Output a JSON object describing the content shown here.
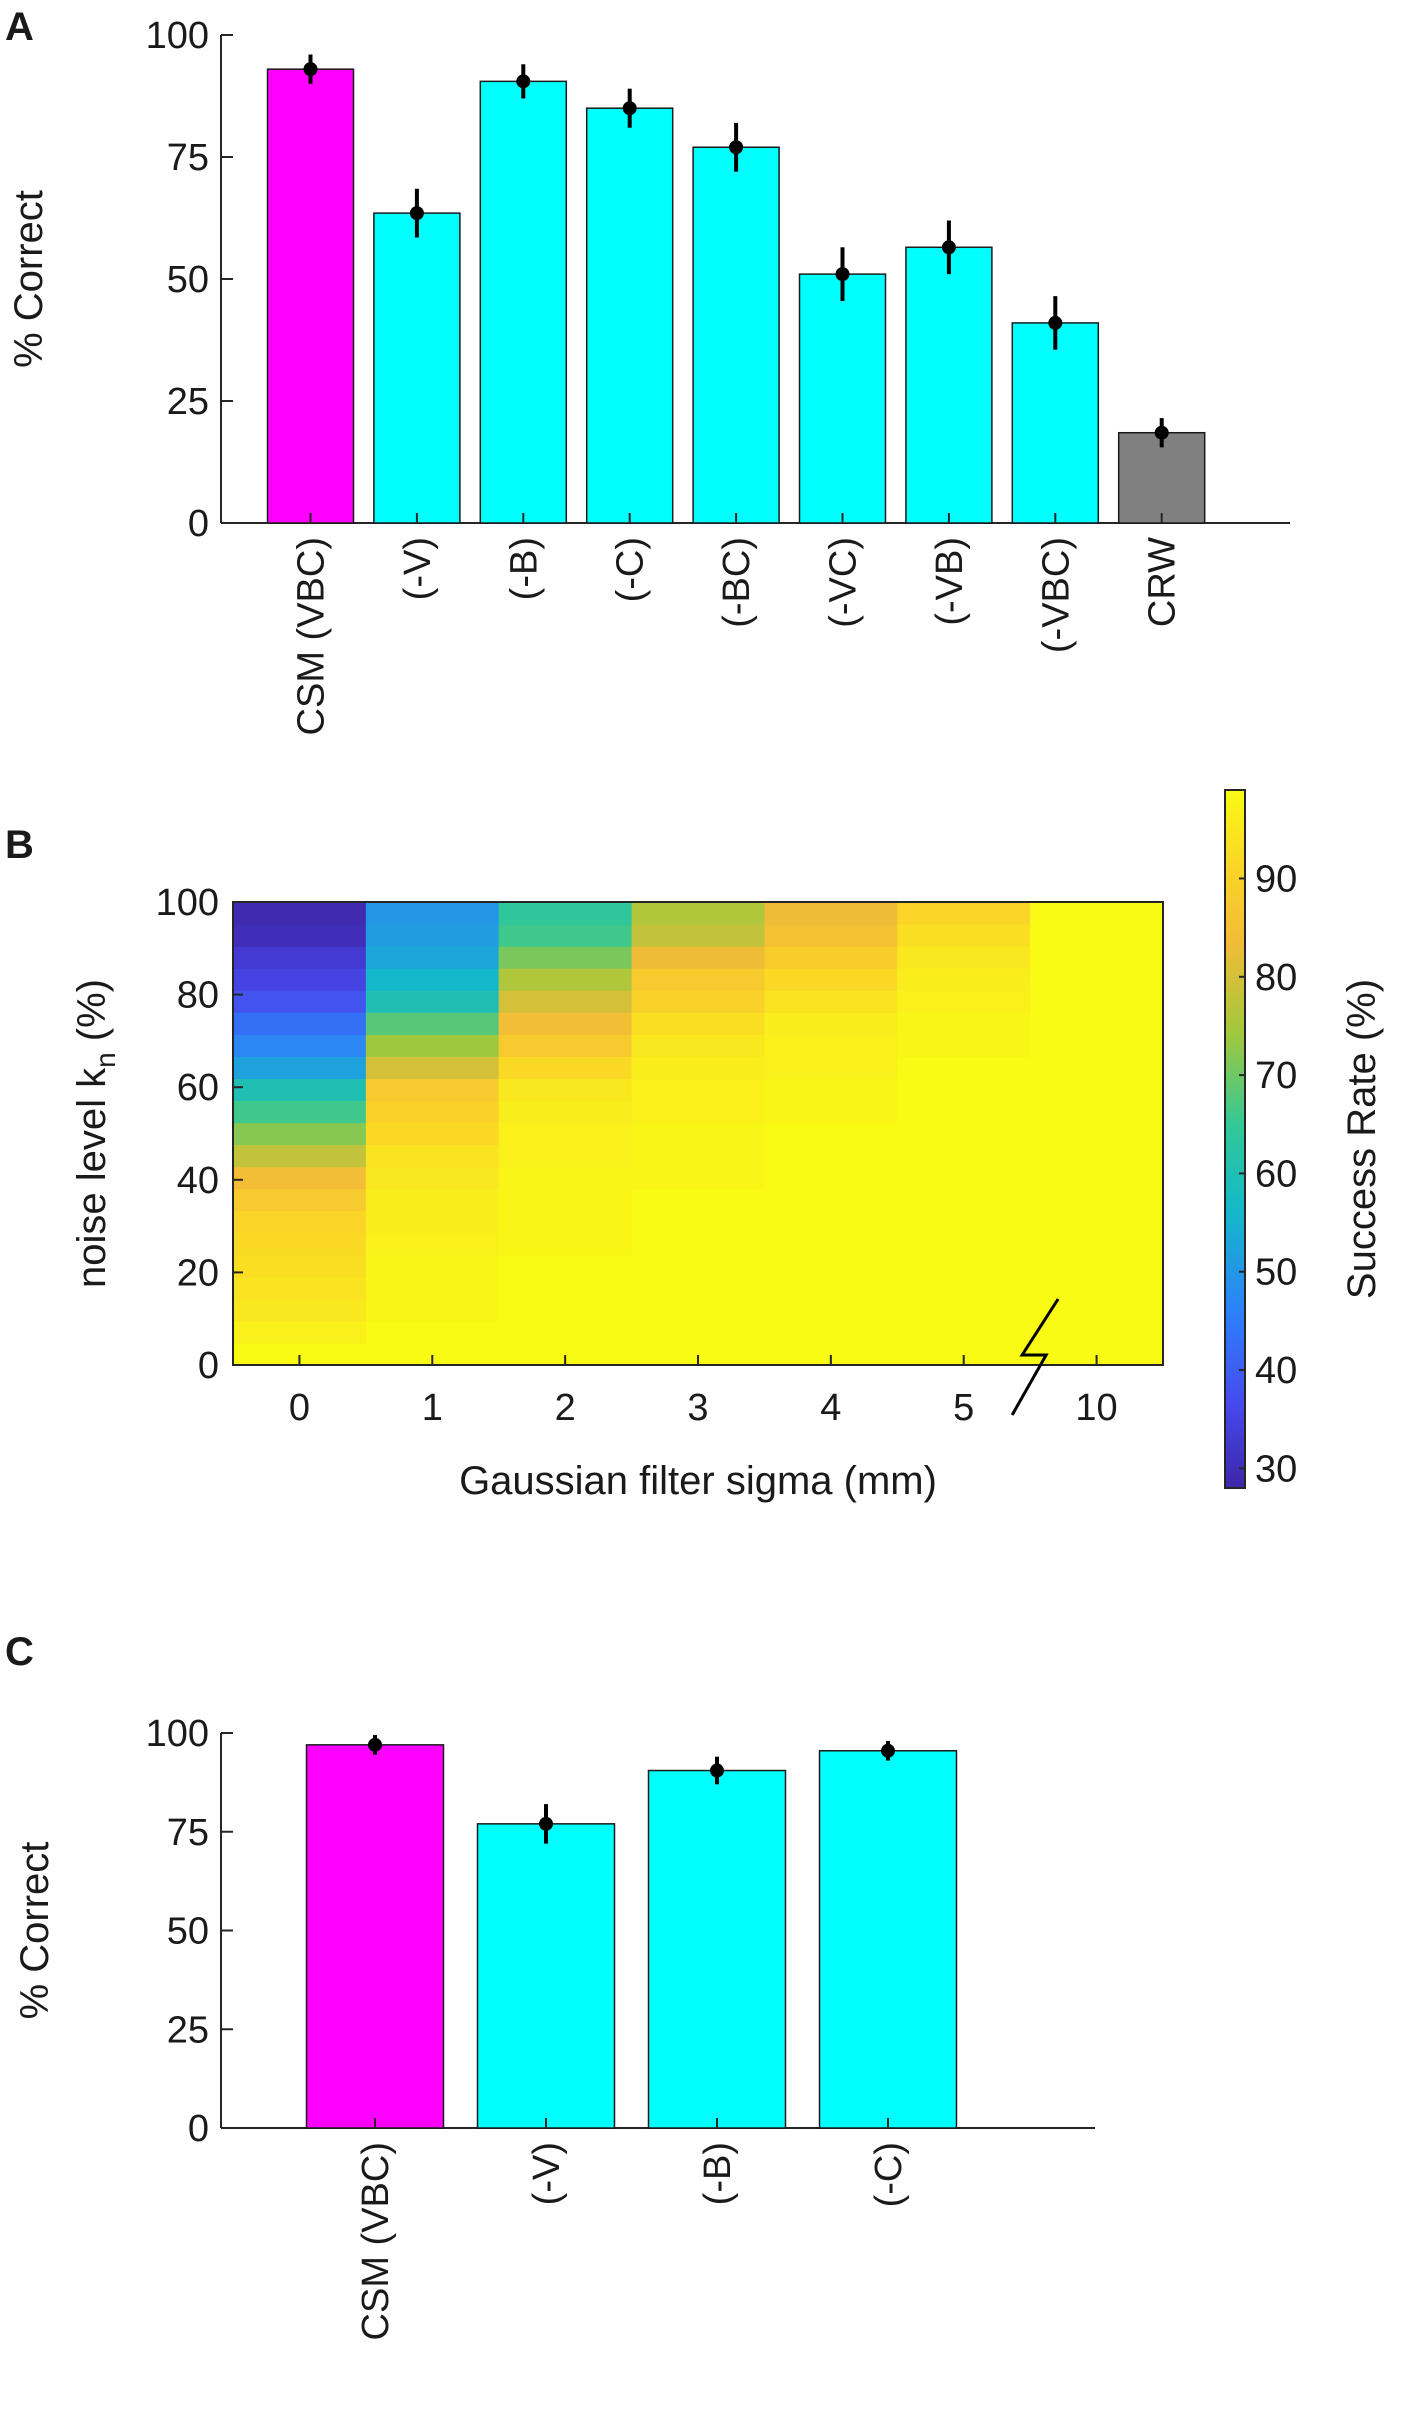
{
  "chart_data": [
    {
      "panel": "A",
      "type": "bar",
      "ylabel": "% Correct",
      "xlabel": "",
      "ylim": [
        0,
        100
      ],
      "yticks": [
        "0",
        "25",
        "50",
        "75",
        "100"
      ],
      "categories": [
        "CSM (VBC)",
        "(-V)",
        "(-B)",
        "(-C)",
        "(-BC)",
        "(-VC)",
        "(-VB)",
        "(-VBC)",
        "CRW"
      ],
      "values": [
        93,
        63.5,
        90.5,
        85,
        77,
        51,
        56.5,
        41,
        18.5
      ],
      "errors": [
        3,
        5,
        3.5,
        4,
        5,
        5.5,
        5.5,
        5.5,
        3
      ],
      "colors": [
        "#ff00ff",
        "#00ffff",
        "#00ffff",
        "#00ffff",
        "#00ffff",
        "#00ffff",
        "#00ffff",
        "#00ffff",
        "#808080"
      ]
    },
    {
      "panel": "B",
      "type": "heatmap",
      "xlabel": "Gaussian filter sigma (mm)",
      "ylabel": "noise level k",
      "ylabel_sub": "n",
      "ylabel_suffix": " (%)",
      "x": [
        "0",
        "1",
        "2",
        "3",
        "4",
        "5",
        "10"
      ],
      "yticks": [
        "0",
        "20",
        "40",
        "60",
        "80",
        "100"
      ],
      "ylim": [
        0,
        100
      ],
      "colorbar_label": "Success Rate (%)",
      "colorbar_ticks": [
        "30",
        "40",
        "50",
        "60",
        "70",
        "80",
        "90"
      ],
      "colorbar_range": [
        28,
        99
      ],
      "rows_noise_levels": [
        0,
        5,
        10,
        15,
        20,
        25,
        30,
        35,
        40,
        45,
        50,
        55,
        60,
        65,
        70,
        75,
        80,
        85,
        90,
        95,
        100
      ],
      "values_by_column": [
        [
          99,
          97,
          95,
          94,
          93,
          92,
          91,
          88,
          84,
          78,
          72,
          66,
          60,
          52,
          47,
          43,
          38,
          35,
          33,
          30,
          29
        ],
        [
          99,
          99,
          98,
          98,
          98,
          97,
          96,
          96,
          95,
          94,
          92,
          90,
          88,
          80,
          74,
          68,
          60,
          56,
          53,
          51,
          50
        ],
        [
          99,
          99,
          99,
          99,
          99,
          98,
          98,
          98,
          98,
          97,
          97,
          96,
          95,
          92,
          88,
          84,
          80,
          76,
          71,
          66,
          64
        ],
        [
          99,
          99,
          99,
          99,
          99,
          99,
          99,
          99,
          98,
          98,
          98,
          97,
          97,
          96,
          95,
          93,
          90,
          88,
          83,
          78,
          76
        ],
        [
          99,
          99,
          99,
          99,
          99,
          99,
          99,
          99,
          99,
          99,
          99,
          98,
          98,
          97,
          97,
          96,
          94,
          92,
          89,
          85,
          83
        ],
        [
          99,
          99,
          99,
          99,
          99,
          99,
          99,
          99,
          99,
          99,
          99,
          99,
          99,
          99,
          98,
          98,
          97,
          96,
          95,
          93,
          91
        ],
        [
          99,
          99,
          99,
          99,
          99,
          99,
          99,
          99,
          99,
          99,
          99,
          99,
          99,
          99,
          99,
          99,
          99,
          99,
          99,
          99,
          99
        ]
      ]
    },
    {
      "panel": "C",
      "type": "bar",
      "ylabel": "% Correct",
      "xlabel": "",
      "ylim": [
        0,
        100
      ],
      "yticks": [
        "0",
        "25",
        "50",
        "75",
        "100"
      ],
      "categories": [
        "CSM (VBC)",
        "(-V)",
        "(-B)",
        "(-C)"
      ],
      "values": [
        97,
        77,
        90.5,
        95.5
      ],
      "errors": [
        2.5,
        5,
        3.5,
        2.5
      ],
      "colors": [
        "#ff00ff",
        "#00ffff",
        "#00ffff",
        "#00ffff"
      ]
    }
  ],
  "panel_labels": [
    "A",
    "B",
    "C"
  ]
}
